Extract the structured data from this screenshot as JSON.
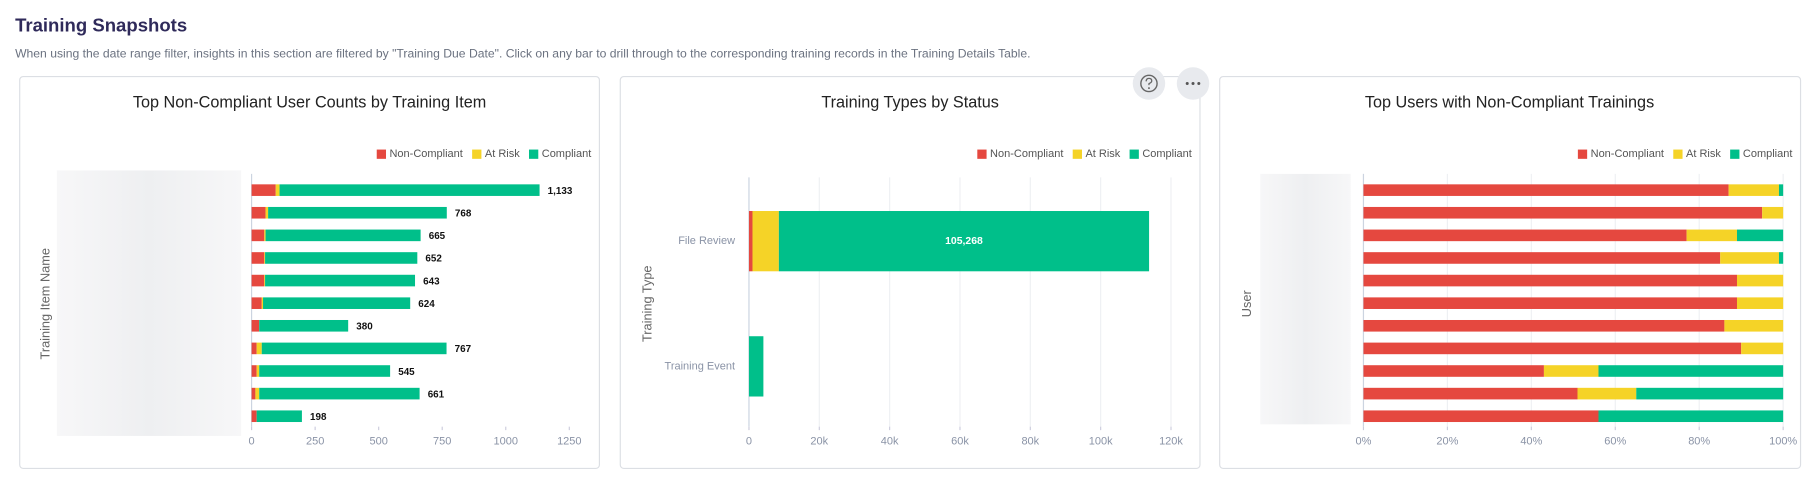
{
  "header": {
    "title": "Training Snapshots",
    "subtitle": "When using the date range filter, insights in this section are filtered by \"Training Due Date\". Click on any bar to drill through to the corresponding training records in the Training Details Table."
  },
  "chart_data": [
    {
      "type": "stacked-barh",
      "title": "Top Non-Compliant User Counts by Training Item",
      "y_label": "Training Item Name",
      "categories": [
        null,
        null,
        null,
        null,
        null,
        null,
        null,
        null,
        null,
        null,
        null
      ],
      "series": [
        {
          "name": "Non-Compliant",
          "color": "#e5483f",
          "values": [
            95,
            55,
            50,
            50,
            50,
            40,
            30,
            20,
            20,
            15,
            20
          ]
        },
        {
          "name": "At Risk",
          "color": "#f5d327",
          "values": [
            15,
            10,
            5,
            3,
            3,
            5,
            0,
            20,
            10,
            15,
            0
          ]
        },
        {
          "name": "Compliant",
          "color": "#00bf8a",
          "values": [
            1023,
            703,
            610,
            599,
            590,
            579,
            350,
            727,
            515,
            631,
            178
          ]
        }
      ],
      "totals": {
        "values": [
          1133,
          768,
          665,
          652,
          643,
          624,
          380,
          767,
          545,
          661,
          198
        ],
        "value_labels": [
          "1,133",
          "768",
          "665",
          "652",
          "643",
          "624",
          "380",
          "767",
          "545",
          "661",
          "198"
        ]
      },
      "xlim": [
        0,
        1300
      ],
      "xticks": [
        0,
        250,
        500,
        750,
        1000,
        1250
      ],
      "grid": false,
      "legend": "top-right"
    },
    {
      "type": "stacked-barh",
      "title": "Training Types by Status",
      "y_label": "Training Type",
      "categories": [
        "File Review",
        "Training Event"
      ],
      "series": [
        {
          "name": "Non-Compliant",
          "color": "#e5483f",
          "values": [
            1000,
            0
          ]
        },
        {
          "name": "At Risk",
          "color": "#f5d327",
          "values": [
            7500,
            0
          ]
        },
        {
          "name": "Compliant",
          "color": "#00bf8a",
          "values": [
            105268,
            4100
          ],
          "value_labels": [
            "105,268",
            null
          ]
        }
      ],
      "xlim": [
        0,
        120000
      ],
      "xticks": [
        0,
        {
          "value": 20000,
          "label": "20k"
        },
        {
          "value": 40000,
          "label": "40k"
        },
        {
          "value": 60000,
          "label": "60k"
        },
        {
          "value": 80000,
          "label": "80k"
        },
        {
          "value": 100000,
          "label": "100k"
        },
        {
          "value": 120000,
          "label": "120k"
        }
      ],
      "grid": true,
      "legend": "top-right"
    },
    {
      "type": "stacked-barh",
      "title": "Top Users with Non-Compliant Trainings",
      "y_label": "User",
      "categories": [
        null,
        null,
        null,
        null,
        null,
        null,
        null,
        null,
        null,
        null,
        null
      ],
      "series": [
        {
          "name": "Non-Compliant",
          "color": "#e5483f",
          "values": [
            87,
            95,
            77,
            85,
            89,
            89,
            86,
            90,
            43,
            51,
            56
          ]
        },
        {
          "name": "At Risk",
          "color": "#f5d327",
          "values": [
            12,
            5,
            12,
            14,
            11,
            11,
            14,
            10,
            13,
            14,
            0
          ]
        },
        {
          "name": "Compliant",
          "color": "#00bf8a",
          "values": [
            1,
            0,
            11,
            1,
            0,
            0,
            0,
            0,
            44,
            35,
            44
          ]
        }
      ],
      "xlim": [
        0,
        100
      ],
      "xticks": [
        {
          "value": 0,
          "label": "0%"
        },
        {
          "value": 20,
          "label": "20%"
        },
        {
          "value": 40,
          "label": "40%"
        },
        {
          "value": 60,
          "label": "60%"
        },
        {
          "value": 80,
          "label": "80%"
        },
        {
          "value": 100,
          "label": "100%"
        }
      ],
      "grid": true,
      "legend": "top-right"
    }
  ]
}
